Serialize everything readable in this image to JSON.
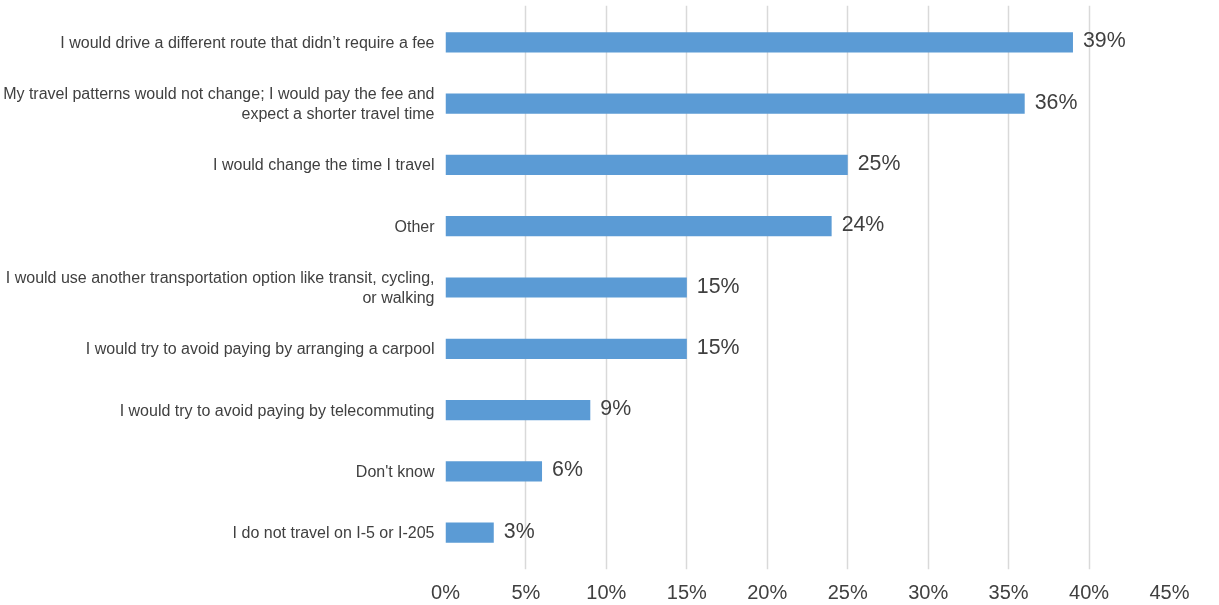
{
  "chart_data": {
    "type": "bar",
    "orientation": "horizontal",
    "categories": [
      "I would drive a different route that didn’t require a fee",
      "My travel patterns would not change; I would pay the fee and expect a shorter travel time",
      "I would change the time I travel",
      "Other",
      "I would use another transportation option like transit, cycling, or walking",
      "I would try to avoid paying by arranging a carpool",
      "I would try to avoid paying by telecommuting",
      "Don't know",
      "I do not travel on I-5 or I-205"
    ],
    "values": [
      39,
      36,
      25,
      24,
      15,
      15,
      9,
      6,
      3
    ],
    "value_labels": [
      "39%",
      "36%",
      "25%",
      "24%",
      "15%",
      "15%",
      "9%",
      "6%",
      "3%"
    ],
    "color": "#5b9bd5",
    "xlim": [
      0,
      45
    ],
    "xticks": [
      {
        "value": 0,
        "label": "0%"
      },
      {
        "value": 5,
        "label": "5%"
      },
      {
        "value": 10,
        "label": "10%"
      },
      {
        "value": 15,
        "label": "15%"
      },
      {
        "value": 20,
        "label": "20%"
      },
      {
        "value": 25,
        "label": "25%"
      },
      {
        "value": 30,
        "label": "30%"
      },
      {
        "value": 35,
        "label": "35%"
      },
      {
        "value": 40,
        "label": "40%"
      },
      {
        "value": 45,
        "label": "45%"
      }
    ],
    "grid": "x"
  }
}
